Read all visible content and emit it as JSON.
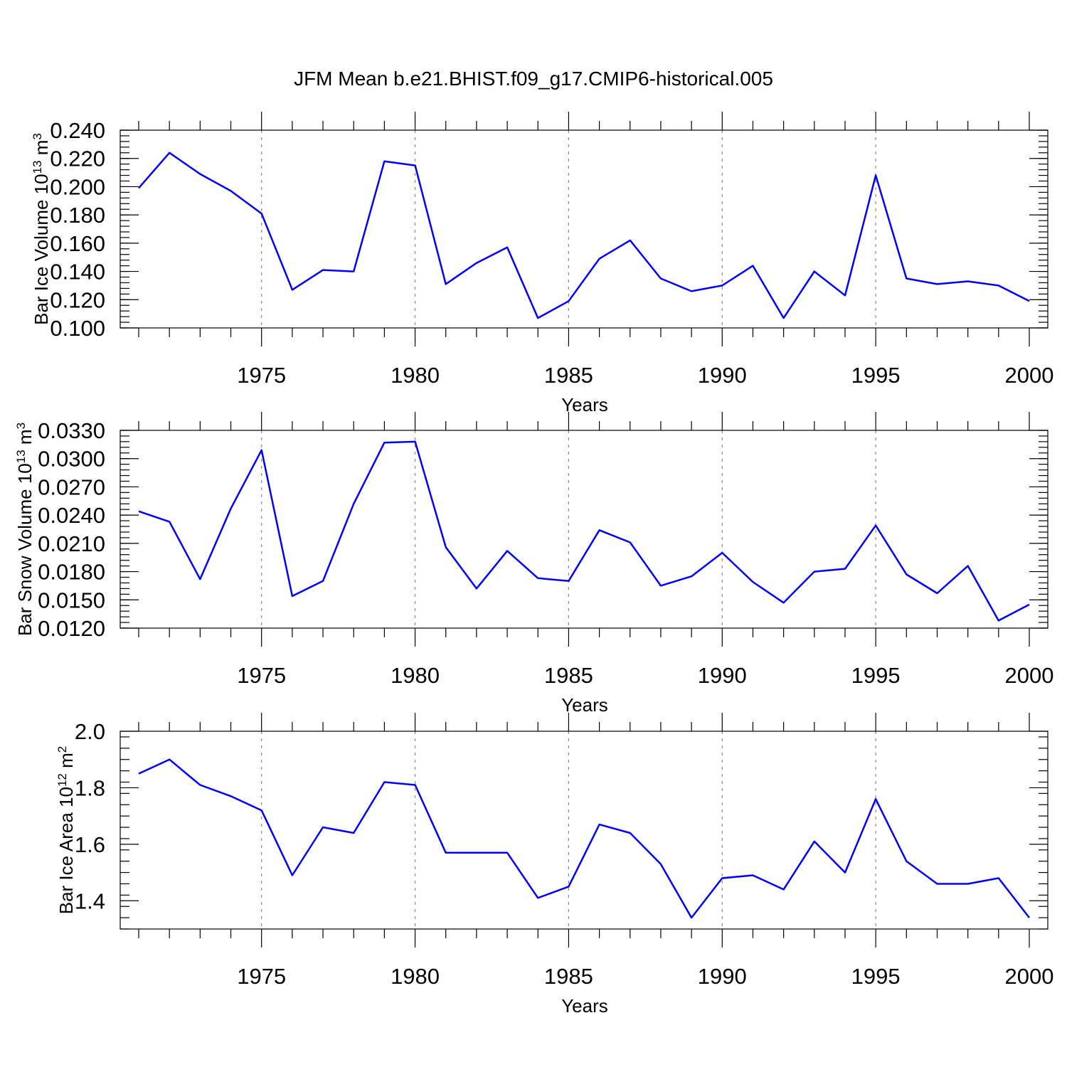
{
  "figure_title": "JFM Mean b.e21.BHIST.f09_g17.CMIP6-historical.005",
  "colors": {
    "line": "#0000ff",
    "grid": "#888888"
  },
  "chart_data": [
    {
      "type": "line",
      "ylabel": "Bar Ice Volume 10",
      "ylabel_exp": "13",
      "ylabel_unit": " m",
      "ylabel_unit_exp": "3",
      "xlabel": "Years",
      "xlim": [
        1971,
        2000
      ],
      "ylim": [
        0.1,
        0.24
      ],
      "ytick_values": [
        0.1,
        0.12,
        0.14,
        0.16,
        0.18,
        0.2,
        0.22,
        0.24
      ],
      "ytick_labels": [
        "0.100",
        "0.120",
        "0.140",
        "0.160",
        "0.180",
        "0.200",
        "0.220",
        "0.240"
      ],
      "xtick_values": [
        1975,
        1980,
        1985,
        1990,
        1995,
        2000
      ],
      "xtick_labels": [
        "1975",
        "1980",
        "1985",
        "1990",
        "1995",
        "2000"
      ],
      "series": [
        {
          "name": "Bar Ice Volume",
          "x": [
            1971,
            1972,
            1973,
            1974,
            1975,
            1976,
            1977,
            1978,
            1979,
            1980,
            1981,
            1982,
            1983,
            1984,
            1985,
            1986,
            1987,
            1988,
            1989,
            1990,
            1991,
            1992,
            1993,
            1994,
            1995,
            1996,
            1997,
            1998,
            1999,
            2000
          ],
          "y": [
            0.199,
            0.224,
            0.209,
            0.197,
            0.181,
            0.127,
            0.141,
            0.14,
            0.218,
            0.215,
            0.131,
            0.146,
            0.157,
            0.107,
            0.119,
            0.149,
            0.162,
            0.135,
            0.126,
            0.13,
            0.144,
            0.107,
            0.14,
            0.123,
            0.208,
            0.135,
            0.131,
            0.133,
            0.13,
            0.119
          ]
        }
      ]
    },
    {
      "type": "line",
      "ylabel": "Bar Snow Volume 10",
      "ylabel_exp": "13",
      "ylabel_unit": " m",
      "ylabel_unit_exp": "3",
      "xlabel": "Years",
      "xlim": [
        1971,
        2000
      ],
      "ylim": [
        0.012,
        0.033
      ],
      "ytick_values": [
        0.012,
        0.015,
        0.018,
        0.021,
        0.024,
        0.027,
        0.03,
        0.033
      ],
      "ytick_labels": [
        "0.0120",
        "0.0150",
        "0.0180",
        "0.0210",
        "0.0240",
        "0.0270",
        "0.0300",
        "0.0330"
      ],
      "xtick_values": [
        1975,
        1980,
        1985,
        1990,
        1995,
        2000
      ],
      "xtick_labels": [
        "1975",
        "1980",
        "1985",
        "1990",
        "1995",
        "2000"
      ],
      "series": [
        {
          "name": "Bar Snow Volume",
          "x": [
            1971,
            1972,
            1973,
            1974,
            1975,
            1976,
            1977,
            1978,
            1979,
            1980,
            1981,
            1982,
            1983,
            1984,
            1985,
            1986,
            1987,
            1988,
            1989,
            1990,
            1991,
            1992,
            1993,
            1994,
            1995,
            1996,
            1997,
            1998,
            1999,
            2000
          ],
          "y": [
            0.0244,
            0.0233,
            0.0172,
            0.0247,
            0.0309,
            0.0154,
            0.017,
            0.0252,
            0.0317,
            0.0318,
            0.0206,
            0.0162,
            0.0202,
            0.0173,
            0.017,
            0.0224,
            0.0211,
            0.0165,
            0.0175,
            0.02,
            0.0169,
            0.0147,
            0.018,
            0.0183,
            0.0229,
            0.0177,
            0.0157,
            0.0186,
            0.0128,
            0.0145
          ]
        }
      ]
    },
    {
      "type": "line",
      "ylabel": "Bar Ice Area 10",
      "ylabel_exp": "12",
      "ylabel_unit": " m",
      "ylabel_unit_exp": "2",
      "xlabel": "Years",
      "xlim": [
        1971,
        2000
      ],
      "ylim": [
        1.3,
        2.0
      ],
      "ytick_values": [
        1.4,
        1.6,
        1.8,
        2.0
      ],
      "ytick_labels": [
        "1.4",
        "1.6",
        "1.8",
        "2.0"
      ],
      "xtick_values": [
        1975,
        1980,
        1985,
        1990,
        1995,
        2000
      ],
      "xtick_labels": [
        "1975",
        "1980",
        "1985",
        "1990",
        "1995",
        "2000"
      ],
      "series": [
        {
          "name": "Bar Ice Area",
          "x": [
            1971,
            1972,
            1973,
            1974,
            1975,
            1976,
            1977,
            1978,
            1979,
            1980,
            1981,
            1982,
            1983,
            1984,
            1985,
            1986,
            1987,
            1988,
            1989,
            1990,
            1991,
            1992,
            1993,
            1994,
            1995,
            1996,
            1997,
            1998,
            1999,
            2000
          ],
          "y": [
            1.85,
            1.9,
            1.81,
            1.77,
            1.72,
            1.49,
            1.66,
            1.64,
            1.82,
            1.81,
            1.57,
            1.57,
            1.57,
            1.41,
            1.45,
            1.67,
            1.64,
            1.53,
            1.34,
            1.48,
            1.49,
            1.44,
            1.61,
            1.5,
            1.76,
            1.54,
            1.46,
            1.46,
            1.48,
            1.34
          ]
        }
      ]
    }
  ]
}
